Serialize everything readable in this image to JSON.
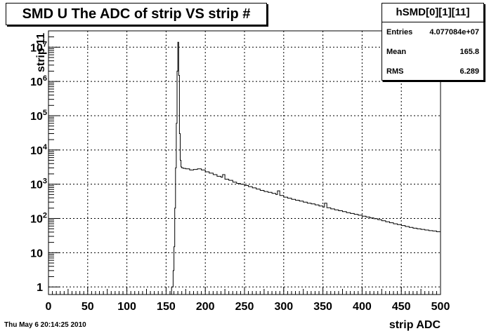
{
  "chart_data": {
    "type": "line",
    "title": "SMD U The ADC of strip VS strip #",
    "xlabel": "strip ADC",
    "ylabel": "strip 11",
    "xlim": [
      0,
      500
    ],
    "ylim": [
      0.6,
      30000000
    ],
    "y_scale": "log",
    "grid": true,
    "x_ticks": [
      0,
      50,
      100,
      150,
      200,
      250,
      300,
      350,
      400,
      450,
      500
    ],
    "x_tick_labels": [
      "0",
      "50",
      "100",
      "150",
      "200",
      "250",
      "300",
      "350",
      "400",
      "450",
      "500"
    ],
    "y_ticks": [
      1,
      10,
      100,
      1000,
      10000,
      100000,
      1000000,
      10000000
    ],
    "y_tick_labels": [
      {
        "base": "1",
        "exp": ""
      },
      {
        "base": "10",
        "exp": ""
      },
      {
        "base": "10",
        "exp": "2"
      },
      {
        "base": "10",
        "exp": "3"
      },
      {
        "base": "10",
        "exp": "4"
      },
      {
        "base": "10",
        "exp": "5"
      },
      {
        "base": "10",
        "exp": "6"
      },
      {
        "base": "10",
        "exp": "7"
      }
    ],
    "series": [
      {
        "x": [
          155,
          157,
          159,
          160,
          161,
          162,
          163,
          164,
          165,
          166,
          167,
          168,
          169,
          170,
          172,
          175,
          180,
          185,
          190,
          195,
          200,
          205,
          210,
          215,
          220,
          222,
          225,
          230,
          235,
          240,
          245,
          250,
          255,
          260,
          265,
          270,
          275,
          280,
          285,
          290,
          292,
          295,
          300,
          305,
          310,
          315,
          320,
          325,
          330,
          335,
          340,
          345,
          350,
          352,
          355,
          360,
          365,
          370,
          375,
          380,
          385,
          390,
          395,
          400,
          405,
          410,
          415,
          420,
          425,
          430,
          435,
          440,
          445,
          450,
          455,
          460,
          465,
          470,
          475,
          480,
          485,
          490,
          495,
          500
        ],
        "y": [
          0.6,
          1,
          3,
          15,
          200,
          3000,
          60000,
          2000000,
          14000000,
          1500000,
          30000,
          5000,
          3200,
          3000,
          2900,
          2800,
          2600,
          2700,
          2800,
          2600,
          2300,
          2100,
          1900,
          1700,
          1600,
          1900,
          1400,
          1300,
          1150,
          1050,
          1000,
          920,
          850,
          780,
          720,
          660,
          610,
          580,
          540,
          500,
          640,
          470,
          420,
          390,
          360,
          340,
          320,
          300,
          280,
          265,
          250,
          230,
          215,
          280,
          205,
          190,
          178,
          168,
          158,
          148,
          140,
          132,
          124,
          116,
          110,
          104,
          98,
          92,
          86,
          80,
          75,
          70,
          66,
          62,
          58,
          55,
          52,
          50,
          48,
          46,
          44,
          43,
          41,
          40
        ]
      }
    ]
  },
  "stats": {
    "name": "hSMD[0][1][11]",
    "rows": [
      {
        "label": "Entries",
        "value": "4.077084e+07"
      },
      {
        "label": "Mean",
        "value": "165.8"
      },
      {
        "label": "RMS",
        "value": "6.289"
      }
    ]
  },
  "footer": {
    "date": "Thu May  6 20:14:25 2010"
  }
}
